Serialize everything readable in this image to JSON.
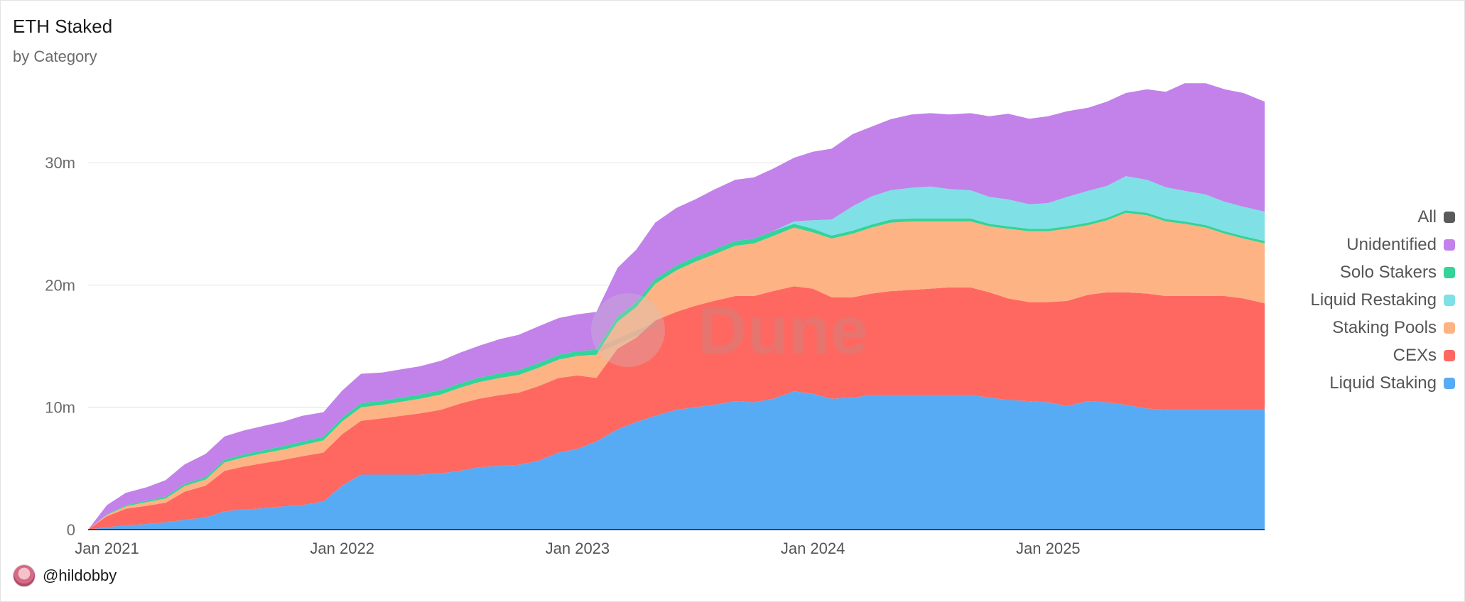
{
  "header": {
    "title": "ETH Staked",
    "subtitle": "by Category"
  },
  "author": {
    "handle": "@hildobby"
  },
  "watermark": {
    "text": "Dune"
  },
  "legend": {
    "items": [
      {
        "label": "All",
        "color": "#5a5a5a"
      },
      {
        "label": "Unidentified",
        "color": "#c381ea"
      },
      {
        "label": "Solo Stakers",
        "color": "#34d399"
      },
      {
        "label": "Liquid Restaking",
        "color": "#7fe0e5"
      },
      {
        "label": "Staking Pools",
        "color": "#fdb383"
      },
      {
        "label": "CEXs",
        "color": "#ff6861"
      },
      {
        "label": "Liquid Staking",
        "color": "#57abf5"
      }
    ]
  },
  "chart_data": {
    "type": "area",
    "stacked": true,
    "title": "ETH Staked",
    "subtitle": "by Category",
    "xlabel": "",
    "ylabel": "",
    "x_range": [
      2020.92,
      2025.92
    ],
    "ylim": [
      0,
      37500000
    ],
    "y_ticks": [
      0,
      10000000,
      20000000,
      30000000
    ],
    "y_tick_labels": [
      "0",
      "10m",
      "20m",
      "30m"
    ],
    "x_ticks": [
      2021.0,
      2022.0,
      2023.0,
      2024.0,
      2025.0
    ],
    "x_tick_labels": [
      "Jan 2021",
      "Jan 2022",
      "Jan 2023",
      "Jan 2024",
      "Jan 2025"
    ],
    "grid": true,
    "legend_position": "right",
    "x": [
      2020.92,
      2021.0,
      2021.08,
      2021.17,
      2021.25,
      2021.33,
      2021.42,
      2021.5,
      2021.58,
      2021.67,
      2021.75,
      2021.83,
      2021.92,
      2022.0,
      2022.08,
      2022.17,
      2022.25,
      2022.33,
      2022.42,
      2022.5,
      2022.58,
      2022.67,
      2022.75,
      2022.83,
      2022.92,
      2023.0,
      2023.08,
      2023.17,
      2023.25,
      2023.33,
      2023.42,
      2023.5,
      2023.58,
      2023.67,
      2023.75,
      2023.83,
      2023.92,
      2024.0,
      2024.08,
      2024.17,
      2024.25,
      2024.33,
      2024.42,
      2024.5,
      2024.58,
      2024.67,
      2024.75,
      2024.83,
      2024.92,
      2025.0,
      2025.08,
      2025.17,
      2025.25,
      2025.33,
      2025.42,
      2025.5,
      2025.58,
      2025.67,
      2025.75,
      2025.83,
      2025.92
    ],
    "series": [
      {
        "name": "Liquid Staking",
        "color": "#57abf5",
        "values": [
          0.0,
          0.2,
          0.35,
          0.45,
          0.6,
          0.8,
          1.0,
          1.5,
          1.65,
          1.75,
          1.9,
          2.0,
          2.3,
          3.6,
          4.5,
          4.5,
          4.5,
          4.5,
          4.6,
          4.8,
          5.1,
          5.2,
          5.3,
          5.6,
          6.3,
          6.6,
          7.2,
          8.2,
          8.8,
          9.3,
          9.8,
          10.0,
          10.2,
          10.5,
          10.4,
          10.7,
          11.3,
          11.1,
          10.7,
          10.8,
          11.0,
          11.0,
          11.0,
          11.0,
          11.0,
          11.0,
          10.8,
          10.6,
          10.5,
          10.4,
          10.1,
          10.5,
          10.4,
          10.2,
          9.9,
          9.8,
          9.8,
          9.8,
          9.8,
          9.8,
          9.8
        ]
      },
      {
        "name": "CEXs",
        "color": "#ff6861",
        "values": [
          0.0,
          0.9,
          1.35,
          1.5,
          1.6,
          2.3,
          2.6,
          3.3,
          3.5,
          3.7,
          3.8,
          4.0,
          4.0,
          4.2,
          4.4,
          4.6,
          4.8,
          5.0,
          5.2,
          5.5,
          5.6,
          5.8,
          5.9,
          6.1,
          6.1,
          6.0,
          5.2,
          6.6,
          6.9,
          7.8,
          8.0,
          8.3,
          8.5,
          8.6,
          8.7,
          8.8,
          8.6,
          8.6,
          8.3,
          8.2,
          8.3,
          8.5,
          8.6,
          8.7,
          8.8,
          8.8,
          8.6,
          8.3,
          8.1,
          8.2,
          8.6,
          8.7,
          9.0,
          9.2,
          9.4,
          9.3,
          9.3,
          9.3,
          9.3,
          9.1,
          8.7
        ]
      },
      {
        "name": "Staking Pools",
        "color": "#fdb383",
        "values": [
          0.0,
          0.1,
          0.2,
          0.3,
          0.35,
          0.45,
          0.5,
          0.7,
          0.75,
          0.8,
          0.85,
          0.9,
          1.0,
          1.05,
          1.1,
          1.1,
          1.15,
          1.2,
          1.25,
          1.3,
          1.35,
          1.4,
          1.45,
          1.5,
          1.5,
          1.6,
          1.9,
          2.2,
          2.5,
          3.0,
          3.4,
          3.6,
          3.8,
          4.1,
          4.3,
          4.5,
          4.8,
          4.6,
          4.8,
          5.2,
          5.4,
          5.6,
          5.6,
          5.5,
          5.4,
          5.4,
          5.4,
          5.7,
          5.8,
          5.8,
          5.9,
          5.7,
          5.9,
          6.5,
          6.4,
          6.1,
          5.9,
          5.6,
          5.1,
          4.9,
          4.9
        ]
      },
      {
        "name": "Solo Stakers",
        "color": "#34d399",
        "values": [
          0.0,
          0.05,
          0.1,
          0.12,
          0.15,
          0.18,
          0.2,
          0.22,
          0.24,
          0.26,
          0.28,
          0.3,
          0.3,
          0.32,
          0.34,
          0.34,
          0.35,
          0.35,
          0.36,
          0.36,
          0.37,
          0.38,
          0.38,
          0.39,
          0.4,
          0.4,
          0.4,
          0.4,
          0.4,
          0.4,
          0.4,
          0.4,
          0.4,
          0.4,
          0.4,
          0.4,
          0.3,
          0.3,
          0.25,
          0.25,
          0.25,
          0.25,
          0.25,
          0.25,
          0.25,
          0.25,
          0.2,
          0.2,
          0.2,
          0.2,
          0.2,
          0.2,
          0.2,
          0.2,
          0.2,
          0.2,
          0.2,
          0.2,
          0.2,
          0.2,
          0.2
        ]
      },
      {
        "name": "Liquid Restaking",
        "color": "#7fe0e5",
        "values": [
          0.0,
          0.0,
          0.0,
          0.0,
          0.0,
          0.0,
          0.0,
          0.0,
          0.0,
          0.0,
          0.0,
          0.0,
          0.0,
          0.0,
          0.0,
          0.0,
          0.0,
          0.0,
          0.0,
          0.0,
          0.0,
          0.0,
          0.0,
          0.0,
          0.0,
          0.0,
          0.0,
          0.0,
          0.0,
          0.0,
          0.0,
          0.0,
          0.0,
          0.0,
          0.0,
          0.0,
          0.2,
          0.7,
          1.3,
          2.0,
          2.3,
          2.4,
          2.5,
          2.6,
          2.4,
          2.3,
          2.2,
          2.2,
          2.0,
          2.1,
          2.4,
          2.6,
          2.6,
          2.8,
          2.7,
          2.6,
          2.5,
          2.5,
          2.4,
          2.4,
          2.4
        ]
      },
      {
        "name": "Unidentified",
        "color": "#c381ea",
        "values": [
          0.0,
          0.75,
          1.0,
          1.1,
          1.35,
          1.6,
          1.9,
          1.9,
          1.96,
          1.99,
          2.0,
          2.1,
          2.0,
          2.2,
          2.4,
          2.3,
          2.3,
          2.3,
          2.4,
          2.5,
          2.6,
          2.8,
          2.9,
          3.0,
          3.0,
          3.0,
          3.1,
          4.0,
          4.3,
          4.6,
          4.7,
          4.7,
          4.9,
          5.0,
          5.0,
          5.1,
          5.2,
          5.6,
          5.8,
          5.9,
          5.7,
          5.8,
          6.0,
          6.0,
          6.1,
          6.3,
          6.6,
          7.0,
          7.0,
          7.1,
          7.0,
          6.8,
          6.9,
          6.8,
          7.4,
          7.8,
          8.8,
          9.1,
          9.2,
          9.3,
          9.0
        ]
      }
    ],
    "value_unit": "millions"
  }
}
